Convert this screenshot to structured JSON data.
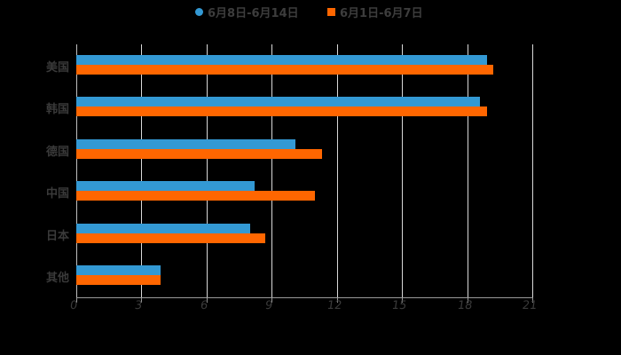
{
  "legend": [
    {
      "label": "6月8日-6月14日",
      "color": "#3399d4",
      "marker": "circle"
    },
    {
      "label": "6月1日-6月7日",
      "color": "#ff6600",
      "marker": "square"
    }
  ],
  "axis": {
    "x_ticks": [
      "0",
      "3",
      "6",
      "9",
      "12",
      "15",
      "18",
      "21"
    ],
    "categories": [
      "美国",
      "韩国",
      "德国",
      "中国",
      "日本",
      "其他"
    ]
  },
  "chart_data": {
    "type": "bar",
    "orientation": "horizontal",
    "title": "",
    "xlabel": "",
    "ylabel": "",
    "categories": [
      "美国",
      "韩国",
      "德国",
      "中国",
      "日本",
      "其他"
    ],
    "series": [
      {
        "name": "6月8日-6月14日",
        "color": "#3399d4",
        "values": [
          18.9,
          18.6,
          10.1,
          8.2,
          8.0,
          3.9
        ]
      },
      {
        "name": "6月1日-6月7日",
        "color": "#ff6600",
        "values": [
          19.2,
          18.9,
          11.3,
          11.0,
          8.7,
          3.9
        ]
      }
    ],
    "xlim": [
      0,
      21
    ],
    "x_ticks": [
      0,
      3,
      6,
      9,
      12,
      15,
      18,
      21
    ],
    "grid": "vertical",
    "legend_position": "top"
  }
}
